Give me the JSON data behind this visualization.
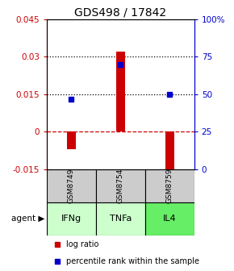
{
  "title": "GDS498 / 17842",
  "samples": [
    "GSM8749",
    "GSM8754",
    "GSM8759"
  ],
  "agents": [
    "IFNg",
    "TNFa",
    "IL4"
  ],
  "bar_values": [
    -0.007,
    0.032,
    -0.0155
  ],
  "blue_values": [
    0.013,
    0.027,
    0.015
  ],
  "ylim_left": [
    -0.015,
    0.045
  ],
  "ylim_right": [
    0,
    100
  ],
  "yticks_left": [
    -0.015,
    0.0,
    0.015,
    0.03,
    0.045
  ],
  "yticks_right": [
    0,
    25,
    50,
    75,
    100
  ],
  "ytick_labels_left": [
    "-0.015",
    "0",
    "0.015",
    "0.03",
    "0.045"
  ],
  "ytick_labels_right": [
    "0",
    "25",
    "50",
    "75",
    "100%"
  ],
  "hlines_dotted": [
    0.03,
    0.015
  ],
  "bar_color": "#CC0000",
  "blue_color": "#0000CC",
  "sample_bg_color": "#cccccc",
  "agent_colors": [
    "#ccffcc",
    "#ccffcc",
    "#66ee66"
  ],
  "bar_width": 0.18,
  "title_fontsize": 10,
  "tick_fontsize": 7.5,
  "legend_fontsize": 7,
  "xlim": [
    -0.5,
    2.5
  ]
}
